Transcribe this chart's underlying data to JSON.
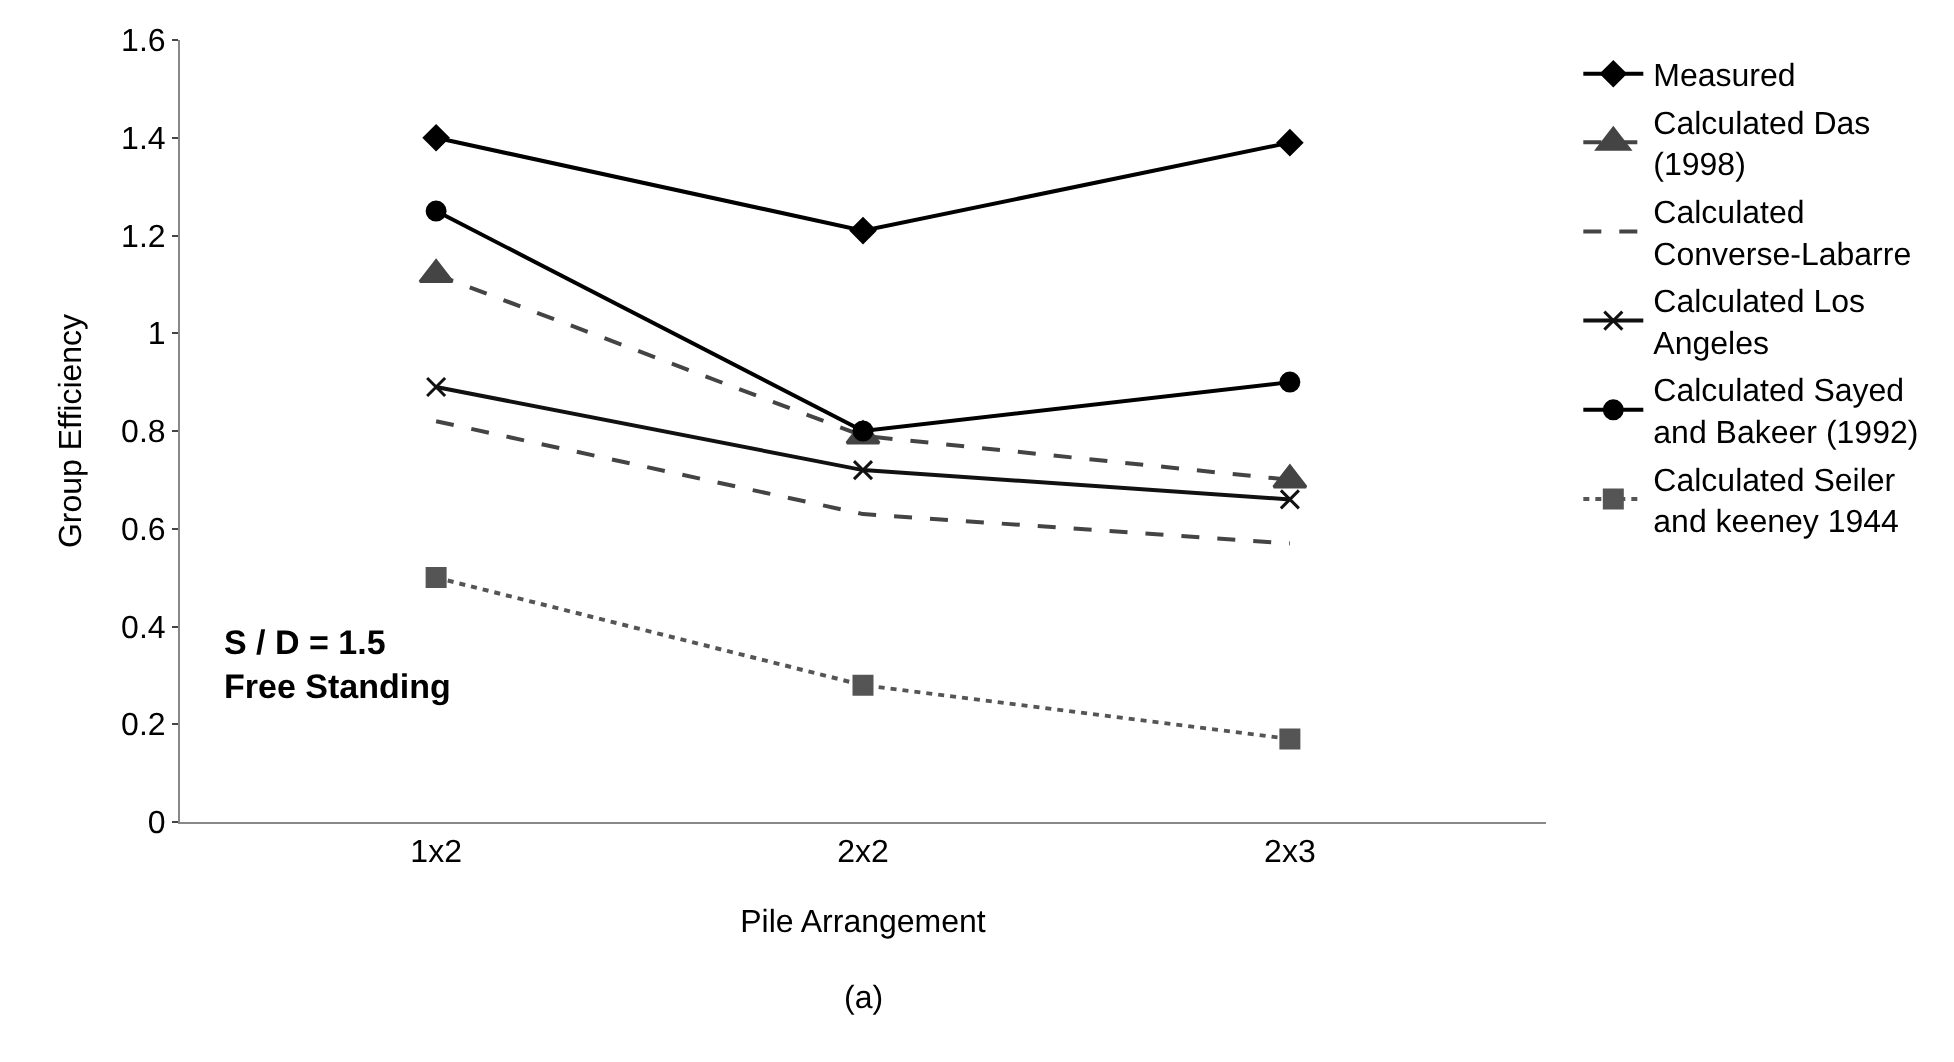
{
  "chart_data": {
    "type": "line",
    "xlabel": "Pile Arrangement",
    "ylabel": "Group Efficiency",
    "categories": [
      "1x2",
      "2x2",
      "2x3"
    ],
    "ylim": [
      0,
      1.6
    ],
    "yticks": [
      0,
      0.2,
      0.4,
      0.6,
      0.8,
      1,
      1.2,
      1.4,
      1.6
    ],
    "legend": "right",
    "series": [
      {
        "name": "Measured",
        "color": "#000000",
        "values": [
          1.4,
          1.21,
          1.39
        ],
        "marker": "diamond",
        "line_style": "solid"
      },
      {
        "name": "Calculated Das (1998)",
        "color": "#444444",
        "values": [
          1.12,
          0.79,
          0.7
        ],
        "marker": "triangle",
        "line_style": "dashed"
      },
      {
        "name": "Calculated Converse-Labarre",
        "color": "#444444",
        "values": [
          0.82,
          0.63,
          0.57
        ],
        "marker": "none",
        "line_style": "dashed"
      },
      {
        "name": "Calculated Los Angeles",
        "color": "#111111",
        "values": [
          0.89,
          0.72,
          0.66
        ],
        "marker": "cross",
        "line_style": "solid"
      },
      {
        "name": " Calculated Sayed and Bakeer (1992)",
        "color": "#000000",
        "values": [
          1.25,
          0.8,
          0.9
        ],
        "marker": "circle",
        "line_style": "solid"
      },
      {
        "name": "Calculated Seiler and keeney 1944",
        "color": "#555555",
        "values": [
          0.5,
          0.28,
          0.17
        ],
        "marker": "square",
        "line_style": "dotted"
      }
    ],
    "annotations": [
      "S / D = 1.5\nFree Standing",
      "(a)"
    ]
  }
}
